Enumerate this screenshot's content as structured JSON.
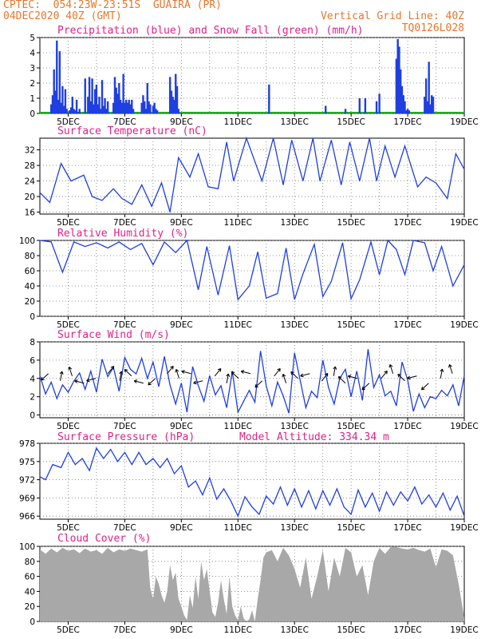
{
  "header": {
    "station": "CPTEC:  054:23W-23:51S  GUAIRA (PR)",
    "datetime": "04DEC2020 40Z (GMT)",
    "grid_note": "Vertical Grid Line: 40Z",
    "code": "TQ0126L028"
  },
  "colors": {
    "line": "#1f3fe0",
    "snow": "#22aa22",
    "cloud": "#a8a8a8",
    "title": "#e0218a",
    "header": "#e8762b"
  },
  "chart_data": [
    {
      "type": "bar",
      "title": "Precipitation (blue) and Snow Fall (green) (mm/h)",
      "ylim": [
        0,
        5
      ],
      "yticks": [
        0,
        1,
        2,
        3,
        4,
        5
      ],
      "xlim": [
        4.0,
        19.0
      ],
      "xticks": [
        "5DEC",
        "7DEC",
        "9DEC",
        "11DEC",
        "13DEC",
        "15DEC",
        "17DEC",
        "19DEC"
      ],
      "x": [
        4.4,
        4.45,
        4.5,
        4.55,
        4.6,
        4.65,
        4.7,
        4.75,
        4.8,
        4.85,
        4.9,
        4.95,
        5.05,
        5.1,
        5.15,
        5.2,
        5.25,
        5.3,
        5.35,
        5.4,
        5.6,
        5.7,
        5.75,
        5.8,
        5.85,
        5.9,
        5.95,
        6.0,
        6.05,
        6.1,
        6.15,
        6.2,
        6.25,
        6.3,
        6.35,
        6.4,
        6.6,
        6.65,
        6.7,
        6.75,
        6.8,
        6.85,
        6.9,
        6.95,
        7.0,
        7.05,
        7.1,
        7.15,
        7.2,
        7.25,
        7.3,
        7.6,
        7.65,
        7.7,
        7.75,
        7.8,
        7.85,
        7.9,
        8.0,
        8.05,
        8.1,
        8.15,
        8.6,
        8.65,
        8.7,
        8.75,
        8.8,
        8.85,
        8.9,
        12.1,
        14.1,
        14.8,
        15.3,
        15.5,
        15.9,
        16.0,
        16.6,
        16.65,
        16.7,
        16.75,
        16.8,
        16.85,
        16.9,
        16.95,
        17.0,
        17.05,
        17.6,
        17.65,
        17.7,
        17.75,
        17.8,
        17.85,
        17.9
      ],
      "values": [
        0.6,
        1.2,
        2.9,
        1.5,
        4.8,
        0.9,
        4.1,
        0.7,
        1.8,
        0.5,
        1.6,
        0.3,
        0.2,
        0.4,
        1.1,
        0.3,
        0.2,
        0.9,
        0.1,
        0.3,
        2.3,
        1.1,
        2.4,
        0.8,
        2.3,
        0.6,
        1.6,
        1.9,
        0.6,
        1.1,
        0.3,
        2.2,
        0.5,
        1.0,
        0.3,
        0.8,
        0.7,
        2.4,
        1.7,
        1.3,
        2.0,
        0.9,
        0.7,
        2.6,
        0.7,
        0.9,
        0.7,
        0.9,
        0.6,
        0.9,
        0.3,
        0.7,
        1.2,
        0.8,
        0.3,
        2.0,
        0.8,
        0.6,
        0.5,
        0.7,
        0.3,
        0.2,
        2.4,
        1.5,
        1.1,
        0.9,
        2.6,
        1.8,
        0.3,
        1.9,
        0.5,
        0.3,
        1.0,
        1.0,
        0.8,
        1.3,
        3.6,
        4.9,
        4.4,
        2.9,
        1.8,
        1.2,
        0.8,
        0.2,
        0.3,
        0.2,
        1.1,
        2.3,
        0.8,
        3.4,
        0.6,
        1.2,
        1.1
      ]
    },
    {
      "type": "line",
      "title": "Surface Temperature (nC)",
      "ylim": [
        15.5,
        35
      ],
      "yticks": [
        16,
        20,
        24,
        28,
        32
      ],
      "xlim": [
        4.0,
        19.0
      ],
      "xticks": [
        "5DEC",
        "7DEC",
        "9DEC",
        "11DEC",
        "13DEC",
        "15DEC",
        "17DEC",
        "19DEC"
      ],
      "x": [
        4.0,
        4.35,
        4.75,
        5.1,
        5.55,
        5.85,
        6.2,
        6.6,
        6.9,
        7.25,
        7.6,
        7.95,
        8.3,
        8.6,
        8.9,
        9.3,
        9.6,
        9.95,
        10.3,
        10.6,
        10.85,
        11.3,
        11.6,
        11.85,
        12.25,
        12.6,
        12.9,
        13.3,
        13.65,
        13.9,
        14.3,
        14.65,
        14.95,
        15.3,
        15.65,
        15.9,
        16.2,
        16.55,
        16.9,
        17.35,
        17.65,
        18.0,
        18.4,
        18.7,
        19.0
      ],
      "values": [
        21,
        18.5,
        28.5,
        24,
        25.5,
        20,
        19,
        22,
        19.5,
        18,
        23,
        17.5,
        23.5,
        16,
        30,
        25,
        31,
        22.5,
        22,
        34,
        24,
        35,
        29,
        24,
        35,
        23,
        34.5,
        24,
        35,
        24,
        34.5,
        23,
        34,
        24,
        35,
        24,
        33,
        25,
        33,
        22.5,
        25,
        23.5,
        19.5,
        31,
        27
      ]
    },
    {
      "type": "line",
      "title": "Relative Humidity (%)",
      "ylim": [
        0,
        100
      ],
      "yticks": [
        0,
        20,
        40,
        60,
        80,
        100
      ],
      "xlim": [
        4.0,
        19.0
      ],
      "xticks": [
        "5DEC",
        "7DEC",
        "9DEC",
        "11DEC",
        "13DEC",
        "15DEC",
        "17DEC",
        "19DEC"
      ],
      "x": [
        4.0,
        4.4,
        4.8,
        5.2,
        5.6,
        6.0,
        6.4,
        6.8,
        7.2,
        7.6,
        8.0,
        8.4,
        8.8,
        9.2,
        9.6,
        9.9,
        10.3,
        10.7,
        11.0,
        11.4,
        11.7,
        12.0,
        12.4,
        12.7,
        13.0,
        13.3,
        13.7,
        14.0,
        14.3,
        14.7,
        15.0,
        15.3,
        15.7,
        16.0,
        16.3,
        16.6,
        16.9,
        17.2,
        17.6,
        17.9,
        18.2,
        18.6,
        19.0
      ],
      "values": [
        100,
        98,
        58,
        98,
        92,
        97,
        90,
        98,
        88,
        96,
        68,
        98,
        84,
        100,
        35,
        92,
        28,
        93,
        22,
        40,
        85,
        24,
        30,
        90,
        22,
        56,
        95,
        26,
        46,
        97,
        23,
        48,
        98,
        55,
        100,
        88,
        55,
        100,
        97,
        60,
        92,
        40,
        68
      ]
    },
    {
      "type": "line",
      "title": "Surface Wind (m/s)",
      "ylim": [
        -0.3,
        8
      ],
      "yticks": [
        0,
        2,
        4,
        6,
        8
      ],
      "xlim": [
        4.0,
        19.0
      ],
      "xticks": [
        "5DEC",
        "7DEC",
        "9DEC",
        "11DEC",
        "13DEC",
        "15DEC",
        "17DEC",
        "19DEC"
      ],
      "x": [
        4.0,
        4.2,
        4.4,
        4.6,
        4.8,
        5.0,
        5.2,
        5.4,
        5.6,
        5.8,
        6.0,
        6.2,
        6.4,
        6.6,
        6.8,
        7.0,
        7.2,
        7.4,
        7.6,
        7.8,
        8.0,
        8.2,
        8.4,
        8.6,
        8.8,
        9.0,
        9.2,
        9.4,
        9.6,
        9.8,
        10.0,
        10.2,
        10.4,
        10.6,
        10.8,
        11.0,
        11.2,
        11.4,
        11.6,
        11.8,
        12.0,
        12.2,
        12.4,
        12.6,
        12.8,
        13.0,
        13.2,
        13.4,
        13.6,
        13.8,
        14.0,
        14.2,
        14.4,
        14.6,
        14.8,
        15.0,
        15.2,
        15.4,
        15.6,
        15.8,
        16.0,
        16.2,
        16.4,
        16.6,
        16.8,
        17.0,
        17.2,
        17.4,
        17.6,
        17.8,
        18.0,
        18.2,
        18.4,
        18.6,
        18.8,
        19.0
      ],
      "values": [
        4.3,
        2.3,
        3.6,
        1.8,
        3.3,
        2.5,
        3.7,
        4.6,
        2.8,
        4.8,
        2.5,
        6.1,
        4.2,
        5.2,
        2.6,
        6.3,
        5.0,
        4.5,
        6.2,
        4.0,
        5.8,
        3.1,
        6.4,
        3.3,
        1.2,
        3.5,
        0.3,
        5.3,
        3.2,
        1.5,
        4.3,
        2.2,
        3.2,
        0.8,
        4.8,
        0.3,
        1.5,
        2.7,
        1.4,
        7.0,
        3.2,
        1.0,
        3.6,
        2.1,
        0.2,
        6.8,
        3.8,
        0.8,
        2.6,
        1.9,
        6.0,
        3.0,
        1.2,
        4.0,
        5.0,
        2.0,
        4.8,
        1.6,
        7.2,
        3.0,
        4.4,
        2.1,
        2.6,
        1.0,
        5.8,
        3.8,
        0.4,
        2.3,
        0.8,
        2.0,
        1.8,
        2.7,
        2.1,
        3.3,
        1.0,
        4.3
      ]
    },
    {
      "type": "line",
      "title": "Surface Pressure (hPa)",
      "subtitle": "Model Altitude: 334.34 m",
      "ylim": [
        965.5,
        978
      ],
      "yticks": [
        966,
        969,
        972,
        975,
        978
      ],
      "xlim": [
        4.0,
        19.0
      ],
      "xticks": [
        "5DEC",
        "7DEC",
        "9DEC",
        "11DEC",
        "13DEC",
        "15DEC",
        "17DEC",
        "19DEC"
      ],
      "x": [
        4.0,
        4.2,
        4.45,
        4.75,
        5.0,
        5.25,
        5.5,
        5.75,
        6.0,
        6.25,
        6.5,
        6.75,
        7.0,
        7.25,
        7.5,
        7.75,
        8.0,
        8.25,
        8.5,
        8.75,
        9.0,
        9.25,
        9.5,
        9.75,
        10.0,
        10.25,
        10.5,
        10.75,
        11.0,
        11.25,
        11.5,
        11.75,
        12.0,
        12.25,
        12.5,
        12.75,
        13.0,
        13.25,
        13.5,
        13.75,
        14.0,
        14.25,
        14.5,
        14.75,
        15.0,
        15.25,
        15.5,
        15.75,
        16.0,
        16.25,
        16.5,
        16.75,
        17.0,
        17.25,
        17.5,
        17.75,
        18.0,
        18.25,
        18.5,
        18.75,
        19.0
      ],
      "values": [
        972.5,
        972,
        974.5,
        974,
        976.5,
        974.5,
        975.5,
        973.5,
        977.2,
        975.5,
        977,
        975,
        976.5,
        974.5,
        976.5,
        974.5,
        975.5,
        974,
        975.5,
        973,
        974.3,
        970.8,
        971.8,
        969.5,
        972.3,
        968.8,
        970.5,
        968.5,
        966,
        969.2,
        967.5,
        966.3,
        969.3,
        968,
        970.8,
        967.8,
        970.5,
        967.5,
        970.2,
        967.2,
        970.2,
        967.8,
        970.5,
        967.5,
        966.3,
        970.3,
        967.5,
        969.8,
        966.8,
        970,
        967.8,
        970,
        968.5,
        970.8,
        968,
        969.5,
        967.5,
        969.8,
        967,
        969.3,
        966
      ]
    },
    {
      "type": "area",
      "title": "Cloud Cover (%)",
      "ylim": [
        0,
        100
      ],
      "yticks": [
        0,
        20,
        40,
        60,
        80,
        100
      ],
      "xlim": [
        4.0,
        19.0
      ],
      "xticks": [
        "5DEC",
        "7DEC",
        "9DEC",
        "11DEC",
        "13DEC",
        "15DEC",
        "17DEC",
        "19DEC"
      ],
      "x": [
        4.0,
        4.2,
        4.4,
        4.6,
        4.8,
        5.0,
        5.2,
        5.4,
        5.6,
        5.8,
        6.0,
        6.2,
        6.4,
        6.6,
        6.8,
        7.0,
        7.2,
        7.4,
        7.6,
        7.8,
        7.9,
        8.0,
        8.1,
        8.2,
        8.3,
        8.4,
        8.5,
        8.6,
        8.7,
        8.8,
        8.9,
        9.0,
        9.1,
        9.2,
        9.3,
        9.4,
        9.5,
        9.6,
        9.7,
        9.8,
        9.9,
        10.0,
        10.1,
        10.2,
        10.3,
        10.4,
        10.5,
        10.6,
        10.7,
        10.8,
        10.9,
        11.0,
        11.1,
        11.2,
        11.3,
        11.4,
        11.5,
        11.6,
        11.7,
        11.8,
        11.9,
        12.0,
        12.2,
        12.4,
        12.6,
        12.8,
        13.0,
        13.2,
        13.4,
        13.6,
        13.8,
        14.0,
        14.2,
        14.4,
        14.6,
        14.8,
        15.0,
        15.2,
        15.4,
        15.6,
        15.8,
        16.0,
        16.2,
        16.4,
        16.6,
        16.8,
        17.0,
        17.2,
        17.4,
        17.6,
        17.8,
        18.0,
        18.2,
        18.4,
        18.6,
        18.8,
        19.0
      ],
      "values": [
        96,
        90,
        97,
        92,
        98,
        94,
        96,
        91,
        97,
        93,
        95,
        90,
        98,
        92,
        96,
        94,
        97,
        95,
        93,
        96,
        45,
        30,
        60,
        50,
        35,
        25,
        40,
        75,
        55,
        65,
        30,
        20,
        8,
        2,
        35,
        18,
        60,
        30,
        80,
        55,
        70,
        40,
        12,
        6,
        25,
        55,
        30,
        10,
        60,
        20,
        8,
        2,
        20,
        4,
        0,
        3,
        15,
        0,
        30,
        55,
        85,
        92,
        95,
        80,
        98,
        88,
        70,
        45,
        85,
        30,
        60,
        95,
        40,
        85,
        60,
        98,
        92,
        60,
        75,
        35,
        80,
        98,
        90,
        99,
        99,
        97,
        96,
        98,
        95,
        93,
        97,
        72,
        96,
        94,
        88,
        50,
        5
      ]
    }
  ]
}
